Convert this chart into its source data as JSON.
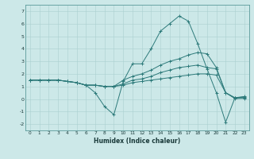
{
  "title": "",
  "xlabel": "Humidex (Indice chaleur)",
  "bg_color": "#cce8e8",
  "line_color": "#2d7a7a",
  "xlim": [
    -0.5,
    23.5
  ],
  "ylim": [
    -2.5,
    7.5
  ],
  "xticks": [
    0,
    1,
    2,
    3,
    4,
    5,
    6,
    7,
    8,
    9,
    10,
    11,
    12,
    13,
    14,
    15,
    16,
    17,
    18,
    19,
    20,
    21,
    22,
    23
  ],
  "yticks": [
    -2,
    -1,
    0,
    1,
    2,
    3,
    4,
    5,
    6,
    7
  ],
  "line1_x": [
    0,
    1,
    2,
    3,
    4,
    5,
    6,
    7,
    8,
    9,
    10,
    11,
    12,
    13,
    14,
    15,
    16,
    17,
    18,
    19,
    20,
    21,
    22,
    23
  ],
  "line1_y": [
    1.5,
    1.5,
    1.5,
    1.5,
    1.4,
    1.3,
    1.1,
    0.5,
    -0.6,
    -1.25,
    1.4,
    2.8,
    2.8,
    4.0,
    5.4,
    6.0,
    6.6,
    6.2,
    4.4,
    2.4,
    0.5,
    -1.85,
    0.1,
    0.2
  ],
  "line2_x": [
    0,
    1,
    2,
    3,
    4,
    5,
    6,
    7,
    8,
    9,
    10,
    11,
    12,
    13,
    14,
    15,
    16,
    17,
    18,
    19,
    20,
    21,
    22,
    23
  ],
  "line2_y": [
    1.5,
    1.5,
    1.5,
    1.5,
    1.4,
    1.3,
    1.1,
    1.1,
    1.0,
    1.0,
    1.5,
    1.8,
    2.0,
    2.3,
    2.7,
    3.0,
    3.2,
    3.5,
    3.7,
    3.6,
    2.5,
    0.5,
    0.1,
    0.15
  ],
  "line3_x": [
    0,
    1,
    2,
    3,
    4,
    5,
    6,
    7,
    8,
    9,
    10,
    11,
    12,
    13,
    14,
    15,
    16,
    17,
    18,
    19,
    20,
    21,
    22,
    23
  ],
  "line3_y": [
    1.5,
    1.5,
    1.5,
    1.5,
    1.4,
    1.3,
    1.1,
    1.1,
    1.0,
    1.0,
    1.2,
    1.5,
    1.6,
    1.8,
    2.1,
    2.3,
    2.5,
    2.6,
    2.7,
    2.5,
    2.4,
    0.5,
    0.08,
    0.1
  ],
  "line4_x": [
    0,
    1,
    2,
    3,
    4,
    5,
    6,
    7,
    8,
    9,
    10,
    11,
    12,
    13,
    14,
    15,
    16,
    17,
    18,
    19,
    20,
    21,
    22,
    23
  ],
  "line4_y": [
    1.5,
    1.5,
    1.5,
    1.5,
    1.4,
    1.3,
    1.1,
    1.1,
    1.0,
    1.0,
    1.1,
    1.3,
    1.4,
    1.5,
    1.6,
    1.7,
    1.8,
    1.9,
    2.0,
    2.0,
    1.9,
    0.5,
    0.03,
    0.05
  ]
}
